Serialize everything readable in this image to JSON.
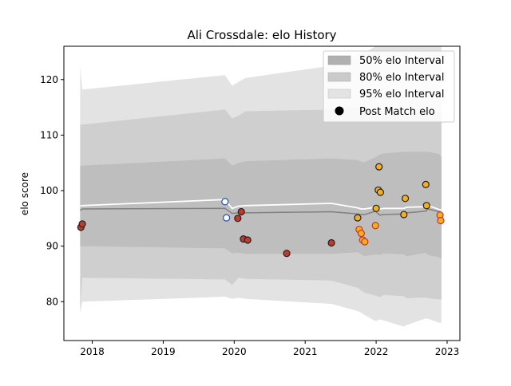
{
  "chart_data": {
    "type": "scatter",
    "title": "Ali Crossdale: elo History",
    "xlabel": "",
    "ylabel": "elo score",
    "xlim": [
      2017.6,
      2023.18
    ],
    "ylim": [
      73,
      126
    ],
    "x_ticks": [
      2018,
      2019,
      2020,
      2021,
      2022,
      2023
    ],
    "x_tick_labels": [
      "2018",
      "2019",
      "2020",
      "2021",
      "2022",
      "2023"
    ],
    "y_ticks": [
      80,
      90,
      100,
      110,
      120
    ],
    "y_tick_labels": [
      "80",
      "90",
      "100",
      "110",
      "120"
    ],
    "grid": false,
    "legend_position": "upper right",
    "colors": {
      "band95": "#e3e3e3",
      "band80": "#cfcfcf",
      "band50": "#bebebe",
      "median_line": "#808080",
      "mean_line": "#ffffff",
      "marker_edge": "#000000",
      "point_fill_orange": "#f5ae1e",
      "point_fill_white": "#ffffff",
      "point_edge_red": "#c0392b",
      "point_edge_blue": "#1f4fbf",
      "point_edge_dark": "#222222"
    },
    "legend": [
      {
        "label": "50% elo Interval",
        "kind": "band50"
      },
      {
        "label": "80% elo Interval",
        "kind": "band80"
      },
      {
        "label": "95% elo Interval",
        "kind": "band95"
      },
      {
        "label": "Post Match elo",
        "kind": "marker"
      }
    ],
    "band_x": [
      2017.83,
      2017.86,
      2019.87,
      2019.97,
      2020.06,
      2020.16,
      2021.37,
      2021.74,
      2021.79,
      2021.84,
      2021.99,
      2022.05,
      2022.11,
      2022.39,
      2022.43,
      2022.7,
      2022.73,
      2022.89,
      2022.92
    ],
    "band95_upper": [
      122.3,
      118.2,
      120.8,
      118.9,
      119.6,
      120.3,
      122.5,
      124.5,
      124.8,
      124.8,
      126,
      126,
      126,
      126,
      126,
      126,
      126,
      126,
      126
    ],
    "band95_lower": [
      77.9,
      80,
      80.9,
      80.5,
      80.7,
      80.5,
      79.6,
      78.3,
      78,
      77.6,
      76.5,
      76.8,
      76.6,
      75.5,
      75.8,
      77,
      76.9,
      76.2,
      76.2
    ],
    "band80_upper": [
      111.9,
      111.9,
      114.6,
      113,
      113.5,
      114.3,
      114.6,
      115,
      114.8,
      114.6,
      114.3,
      114.3,
      114.3,
      114.3,
      114.3,
      114.3,
      114.3,
      114.3,
      114.3
    ],
    "band80_lower": [
      78.5,
      84.3,
      84,
      83,
      84.3,
      84.1,
      83.8,
      82.5,
      82,
      81.6,
      81.1,
      80.8,
      81.2,
      81,
      80.6,
      80.8,
      80.6,
      80.4,
      80.4
    ],
    "band50_upper": [
      104.4,
      104.5,
      105.8,
      104.5,
      105,
      105.3,
      105.8,
      105.5,
      105.2,
      105.1,
      106,
      106.5,
      106.7,
      107,
      107,
      107,
      107,
      106.6,
      106
    ],
    "band50_lower": [
      90,
      90,
      89.6,
      88.7,
      88.8,
      88.6,
      88.6,
      88.9,
      88.5,
      88.2,
      88.5,
      88.4,
      88.7,
      88.5,
      88.2,
      88.8,
      88.4,
      88,
      87.7
    ],
    "median_line": [
      96.4,
      96.7,
      96.8,
      95.9,
      96,
      96,
      96.2,
      95.8,
      95.7,
      95.7,
      96.3,
      95.6,
      95.7,
      95.8,
      96,
      96.3,
      96.7,
      96.2,
      96
    ],
    "mean_line": [
      97.2,
      97.3,
      98.4,
      96.8,
      97.2,
      97.3,
      97.7,
      96.9,
      96.7,
      96.7,
      97,
      96.7,
      96.8,
      96.8,
      97,
      97.1,
      97.3,
      96.6,
      96.5
    ],
    "points": [
      {
        "x": 2017.84,
        "y": 93.4,
        "fill": "#c0392b",
        "edge": "#222222"
      },
      {
        "x": 2017.86,
        "y": 94.0,
        "fill": "#c0392b",
        "edge": "#222222"
      },
      {
        "x": 2019.87,
        "y": 98.0,
        "fill": "#ffffff",
        "edge": "#1f4fbf"
      },
      {
        "x": 2019.89,
        "y": 95.1,
        "fill": "#ffffff",
        "edge": "#1f4fbf"
      },
      {
        "x": 2020.05,
        "y": 95.0,
        "fill": "#c0392b",
        "edge": "#222222"
      },
      {
        "x": 2020.1,
        "y": 96.2,
        "fill": "#c0392b",
        "edge": "#222222"
      },
      {
        "x": 2020.13,
        "y": 91.3,
        "fill": "#c0392b",
        "edge": "#222222"
      },
      {
        "x": 2020.19,
        "y": 91.1,
        "fill": "#c0392b",
        "edge": "#222222"
      },
      {
        "x": 2020.74,
        "y": 88.7,
        "fill": "#c0392b",
        "edge": "#222222"
      },
      {
        "x": 2021.37,
        "y": 90.6,
        "fill": "#c0392b",
        "edge": "#222222"
      },
      {
        "x": 2021.74,
        "y": 95.1,
        "fill": "#f5ae1e",
        "edge": "#222222"
      },
      {
        "x": 2021.76,
        "y": 93.0,
        "fill": "#f5ae1e",
        "edge": "#c0392b"
      },
      {
        "x": 2021.79,
        "y": 92.3,
        "fill": "#f5ae1e",
        "edge": "#c0392b"
      },
      {
        "x": 2021.81,
        "y": 91.1,
        "fill": "#f5ae1e",
        "edge": "#c0392b"
      },
      {
        "x": 2021.84,
        "y": 90.8,
        "fill": "#f5ae1e",
        "edge": "#c0392b"
      },
      {
        "x": 2021.99,
        "y": 93.7,
        "fill": "#f5ae1e",
        "edge": "#c0392b"
      },
      {
        "x": 2022.0,
        "y": 96.8,
        "fill": "#f5ae1e",
        "edge": "#222222"
      },
      {
        "x": 2022.03,
        "y": 100.1,
        "fill": "#f5ae1e",
        "edge": "#222222"
      },
      {
        "x": 2022.04,
        "y": 104.3,
        "fill": "#f5ae1e",
        "edge": "#222222"
      },
      {
        "x": 2022.06,
        "y": 99.7,
        "fill": "#f5ae1e",
        "edge": "#222222"
      },
      {
        "x": 2022.39,
        "y": 95.7,
        "fill": "#f5ae1e",
        "edge": "#222222"
      },
      {
        "x": 2022.41,
        "y": 98.6,
        "fill": "#f5ae1e",
        "edge": "#222222"
      },
      {
        "x": 2022.7,
        "y": 101.1,
        "fill": "#f5ae1e",
        "edge": "#222222"
      },
      {
        "x": 2022.71,
        "y": 97.3,
        "fill": "#f5ae1e",
        "edge": "#222222"
      },
      {
        "x": 2022.9,
        "y": 95.6,
        "fill": "#f5ae1e",
        "edge": "#c0392b"
      },
      {
        "x": 2022.91,
        "y": 94.6,
        "fill": "#f5ae1e",
        "edge": "#c0392b"
      }
    ]
  }
}
